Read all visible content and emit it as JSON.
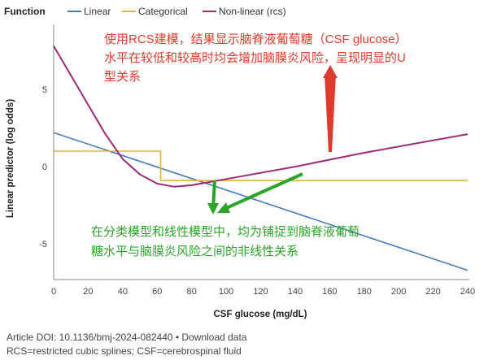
{
  "chart_data": {
    "type": "line",
    "legend_title": "Function",
    "legend_position": "top",
    "xlabel": "CSF glucose (mg/dL)",
    "ylabel": "Linear predictor (log odds)",
    "xlim": [
      0,
      240
    ],
    "ylim": [
      -7.3,
      9.2
    ],
    "xticks": [
      0,
      20,
      40,
      60,
      80,
      100,
      120,
      140,
      160,
      180,
      200,
      220,
      240
    ],
    "yticks": [
      5,
      0,
      -5
    ],
    "grid": false,
    "series": [
      {
        "name": "Linear",
        "color": "#4a7cb8",
        "x": [
          0,
          240
        ],
        "y": [
          2.2,
          -6.7
        ]
      },
      {
        "name": "Categorical",
        "color": "#e3b43a",
        "x": [
          0,
          62,
          62,
          240
        ],
        "y": [
          1.0,
          1.0,
          -0.9,
          -0.9
        ]
      },
      {
        "name": "Non-linear (rcs)",
        "color": "#9c2a7a",
        "x": [
          0,
          10,
          20,
          30,
          40,
          50,
          60,
          70,
          80,
          90,
          100,
          120,
          140,
          160,
          180,
          200,
          220,
          240
        ],
        "y": [
          7.8,
          5.9,
          4.0,
          2.1,
          0.5,
          -0.5,
          -1.1,
          -1.3,
          -1.2,
          -1.0,
          -0.8,
          -0.4,
          0.0,
          0.45,
          0.9,
          1.3,
          1.7,
          2.1
        ]
      }
    ]
  },
  "annotations": {
    "red": [
      "使用RCS建模，结果显示脑脊液葡萄糖（CSF glucose）",
      "水平在较低和较高时均会增加脑膜炎风险，呈现明显的U",
      "型关系"
    ],
    "green": [
      "在分类模型和线性模型中，均为铺捉到脑脊液葡萄",
      "糖水平与脑膜炎风险之间的非线性关系"
    ],
    "red_color": "#e03a2c",
    "green_color": "#2aa52a"
  },
  "footer": {
    "line1": "Article DOI: 10.1136/bmj-2024-082440 • Download data",
    "line2": "RCS=restricted cubic splines; CSF=cerebrospinal fluid"
  }
}
